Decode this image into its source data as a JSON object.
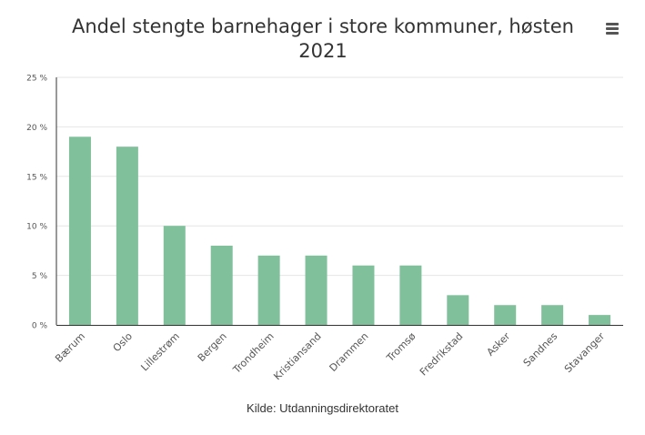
{
  "chart_data": {
    "type": "bar",
    "title": "Andel stengte barnehager i store kommuner, høsten 2021",
    "categories": [
      "Bærum",
      "Oslo",
      "Lillestrøm",
      "Bergen",
      "Trondheim",
      "Kristiansand",
      "Drammen",
      "Tromsø",
      "Fredrikstad",
      "Asker",
      "Sandnes",
      "Stavanger"
    ],
    "values": [
      19,
      18,
      10,
      8,
      7,
      7,
      6,
      6,
      3,
      2,
      2,
      1
    ],
    "yticks": [
      0,
      5,
      10,
      15,
      20,
      25
    ],
    "ytick_labels": [
      "0 %",
      "5 %",
      "10 %",
      "15 %",
      "20 %",
      "25 %"
    ],
    "ylim": [
      0,
      25
    ],
    "xlabel": "",
    "ylabel": "",
    "grid": true,
    "bar_color": "#80c09b",
    "grid_color": "#e6e6e6",
    "axis_color": "#333333"
  },
  "title_lines": [
    "Andel stengte barnehager i store kommuner, høsten",
    "2021"
  ],
  "source": "Kilde: Utdanningsdirektoratet",
  "menu_icon": "hamburger-menu-icon"
}
